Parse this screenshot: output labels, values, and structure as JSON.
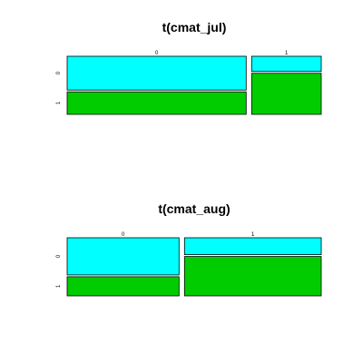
{
  "chart_data": [
    {
      "type": "mosaic",
      "title": "t(cmat_jul)",
      "col_labels": [
        "0",
        "1"
      ],
      "row_labels": [
        "0",
        "1"
      ],
      "col_proportions": [
        0.72,
        0.28
      ],
      "row_proportions": [
        [
          0.6,
          0.4
        ],
        [
          0.27,
          0.73
        ]
      ],
      "row_colors": [
        "#00ffff",
        "#00cc00"
      ]
    },
    {
      "type": "mosaic",
      "title": "t(cmat_aug)",
      "col_labels": [
        "0",
        "1"
      ],
      "row_labels": [
        "0",
        "1"
      ],
      "col_proportions": [
        0.45,
        0.55
      ],
      "row_proportions": [
        [
          0.66,
          0.34
        ],
        [
          0.3,
          0.7
        ]
      ],
      "row_colors": [
        "#00ffff",
        "#00cc00"
      ]
    }
  ]
}
